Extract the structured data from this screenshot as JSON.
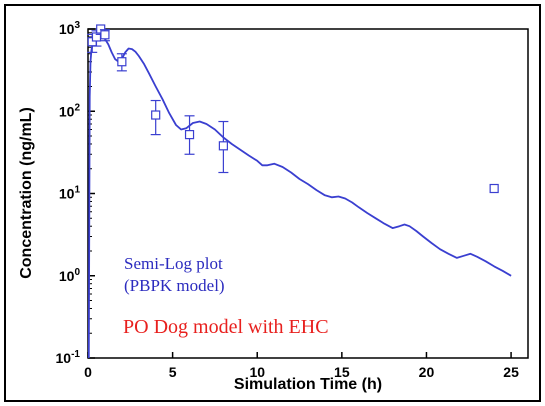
{
  "chart_data": {
    "type": "scatter",
    "xlabel": "Simulation Time (h)",
    "ylabel": "Concentration (ng/mL)",
    "xlim": [
      0,
      26
    ],
    "ylim": [
      0.1,
      1000
    ],
    "x_scale": "linear",
    "y_scale": "log",
    "x_ticks": [
      0,
      5,
      10,
      15,
      20,
      25
    ],
    "x_tick_labels": [
      "0",
      "5",
      "10",
      "15",
      "20",
      "25"
    ],
    "y_ticks": [
      0.1,
      1,
      10,
      100,
      1000
    ],
    "y_tick_labels": [
      {
        "base": "10",
        "exp": "-1"
      },
      {
        "base": "10",
        "exp": "0"
      },
      {
        "base": "10",
        "exp": "1"
      },
      {
        "base": "10",
        "exp": "2"
      },
      {
        "base": "10",
        "exp": "3"
      }
    ],
    "grid": false,
    "annotations": [
      {
        "lines": [
          "Semi-Log plot",
          "(PBPK model)"
        ],
        "color": "#2b2bbf"
      },
      {
        "lines": [
          "PO Dog model with EHC"
        ],
        "color": "#e8201e"
      }
    ],
    "colors": {
      "series": "#3a3fd0",
      "axes": "#000000",
      "frame": "#000000"
    },
    "series": [
      {
        "kind": "line",
        "x": [
          0.05,
          0.1,
          0.15,
          0.2,
          0.3,
          0.5,
          0.7,
          1.0,
          1.2,
          1.4,
          1.6,
          1.8,
          2.0,
          2.2,
          2.4,
          2.6,
          2.8,
          3.0,
          3.3,
          3.6,
          4.0,
          4.4,
          4.8,
          5.2,
          5.5,
          5.8,
          6.2,
          6.6,
          7.0,
          7.5,
          8.0,
          8.5,
          9.0,
          9.5,
          10.0,
          10.3,
          10.6,
          11.0,
          11.5,
          12.0,
          12.5,
          13.0,
          13.5,
          14.0,
          14.4,
          14.8,
          15.2,
          15.6,
          16.0,
          16.5,
          17.0,
          17.5,
          18.0,
          18.4,
          18.7,
          19.0,
          19.4,
          19.8,
          20.3,
          20.8,
          21.3,
          21.8,
          22.2,
          22.6,
          23.0,
          23.5,
          24.0,
          24.5,
          25.0
        ],
        "y": [
          0.1,
          150,
          400,
          550,
          700,
          800,
          820,
          760,
          650,
          520,
          430,
          400,
          430,
          520,
          580,
          570,
          530,
          470,
          380,
          290,
          200,
          140,
          95,
          68,
          60,
          62,
          72,
          75,
          70,
          60,
          48,
          40,
          34,
          29,
          25,
          22,
          22,
          23,
          21,
          18,
          15,
          13,
          11,
          9.5,
          9.0,
          9.2,
          8.7,
          7.8,
          6.8,
          5.8,
          5.0,
          4.3,
          3.8,
          4.0,
          4.2,
          4.0,
          3.5,
          3.0,
          2.5,
          2.1,
          1.85,
          1.65,
          1.75,
          1.85,
          1.7,
          1.5,
          1.3,
          1.15,
          1.0
        ]
      },
      {
        "kind": "observed",
        "x": [
          0.25,
          0.5,
          0.75,
          1.0,
          2.0,
          4.0,
          6.0,
          8.0,
          24.0
        ],
        "y": [
          700,
          800,
          1000,
          850,
          400,
          90,
          52,
          38,
          11.5
        ],
        "y_low": [
          520,
          620,
          860,
          720,
          310,
          52,
          30,
          18,
          11.5
        ],
        "y_high": [
          860,
          950,
          1100,
          980,
          500,
          135,
          88,
          75,
          11.5
        ]
      }
    ]
  }
}
